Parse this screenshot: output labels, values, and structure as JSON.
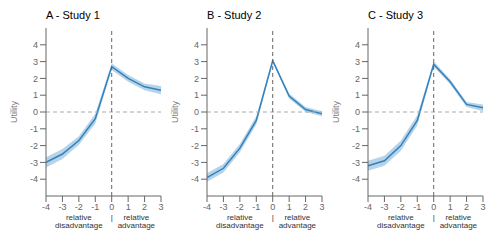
{
  "chart_data": [
    {
      "type": "line",
      "title": "A - Study 1",
      "x": [
        -4,
        -3,
        -2,
        -1,
        0,
        1,
        2,
        3
      ],
      "values": [
        -3.0,
        -2.5,
        -1.7,
        -0.4,
        2.7,
        2.0,
        1.5,
        1.3
      ],
      "upper": [
        -2.7,
        -2.2,
        -1.45,
        -0.1,
        2.9,
        2.2,
        1.7,
        1.55
      ],
      "lower": [
        -3.3,
        -2.8,
        -1.95,
        -0.7,
        2.5,
        1.8,
        1.3,
        1.05
      ],
      "xlim": [
        -4,
        3
      ],
      "ylim": [
        -5,
        5
      ],
      "xticks": [
        -4,
        -3,
        -2,
        -1,
        0,
        1,
        2,
        3
      ],
      "yticks": [
        -4,
        -3,
        -2,
        -1,
        0,
        1,
        2,
        3,
        4
      ],
      "ylabel": "Utility",
      "hline": 0,
      "vline": 0,
      "annotations": [
        {
          "text": "relative disadvantage",
          "x": -2.0
        },
        {
          "text": "|",
          "x": 0.0
        },
        {
          "text": "relative advantage",
          "x": 1.5
        }
      ],
      "grid": false
    },
    {
      "type": "line",
      "title": "B - Study 2",
      "x": [
        -4,
        -3,
        -2,
        -1,
        0,
        1,
        2,
        3
      ],
      "values": [
        -3.9,
        -3.35,
        -2.15,
        -0.5,
        3.05,
        0.95,
        0.15,
        -0.1
      ],
      "upper": [
        -3.65,
        -3.1,
        -1.9,
        -0.25,
        3.15,
        1.1,
        0.3,
        0.05
      ],
      "lower": [
        -4.15,
        -3.6,
        -2.4,
        -0.75,
        2.95,
        0.8,
        0.0,
        -0.25
      ],
      "xlim": [
        -4,
        3
      ],
      "ylim": [
        -5,
        5
      ],
      "xticks": [
        -4,
        -3,
        -2,
        -1,
        0,
        1,
        2,
        3
      ],
      "yticks": [
        -4,
        -3,
        -2,
        -1,
        0,
        1,
        2,
        3,
        4
      ],
      "ylabel": "Utility",
      "hline": 0,
      "vline": 0,
      "annotations": [
        {
          "text": "relative disadvantage",
          "x": -2.0
        },
        {
          "text": "|",
          "x": 0.0
        },
        {
          "text": "relative advantage",
          "x": 1.5
        }
      ],
      "grid": false
    },
    {
      "type": "line",
      "title": "C - Study 3",
      "x": [
        -4,
        -3,
        -2,
        -1,
        0,
        1,
        2,
        3
      ],
      "values": [
        -3.2,
        -2.9,
        -2.0,
        -0.5,
        2.85,
        1.8,
        0.45,
        0.25
      ],
      "upper": [
        -2.9,
        -2.6,
        -1.7,
        -0.2,
        3.0,
        1.95,
        0.6,
        0.45
      ],
      "lower": [
        -3.5,
        -3.2,
        -2.3,
        -0.8,
        2.7,
        1.65,
        0.3,
        0.05
      ],
      "xlim": [
        -4,
        3
      ],
      "ylim": [
        -5,
        5
      ],
      "xticks": [
        -4,
        -3,
        -2,
        -1,
        0,
        1,
        2,
        3
      ],
      "yticks": [
        -4,
        -3,
        -2,
        -1,
        0,
        1,
        2,
        3,
        4
      ],
      "ylabel": "Utility",
      "hline": 0,
      "vline": 0,
      "annotations": [
        {
          "text": "relative disadvantage",
          "x": -2.0
        },
        {
          "text": "|",
          "x": 0.0
        },
        {
          "text": "relative advantage",
          "x": 1.5
        }
      ],
      "grid": false
    }
  ]
}
